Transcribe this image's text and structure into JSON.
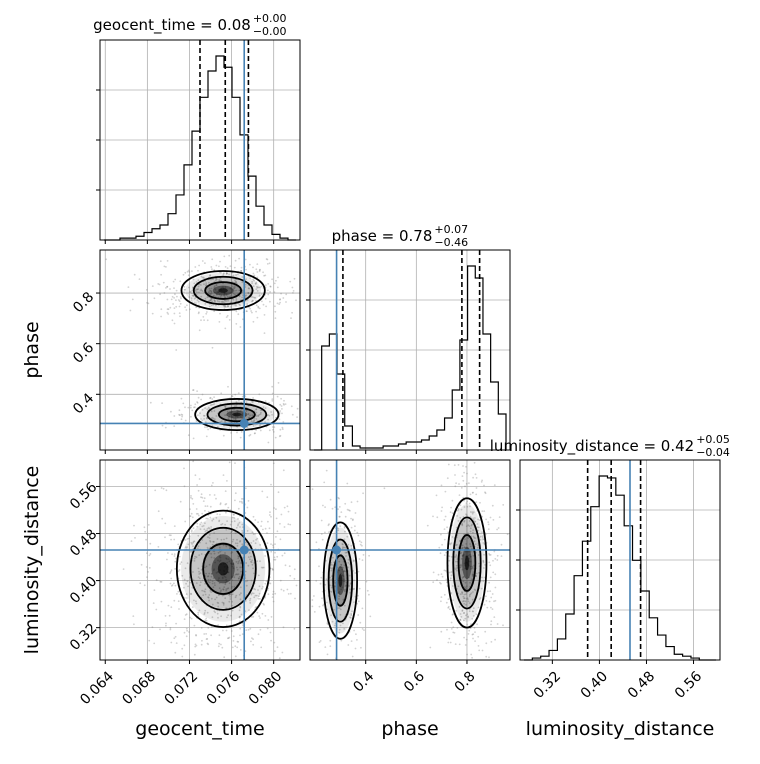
{
  "chart_data": {
    "type": "corner",
    "parameters": [
      "geocent_time",
      "phase",
      "luminosity_distance"
    ],
    "diagonal_titles": [
      {
        "name": "geocent_time",
        "value": "0.08",
        "plus": "+0.00",
        "minus": "−0.00"
      },
      {
        "name": "phase",
        "value": "0.78",
        "plus": "+0.07",
        "minus": "−0.46"
      },
      {
        "name": "luminosity_distance",
        "value": "0.42",
        "plus": "+0.05",
        "minus": "−0.04"
      }
    ],
    "axis_ranges": {
      "geocent_time": [
        0.0635,
        0.0825
      ],
      "phase": [
        0.18,
        0.97
      ],
      "luminosity_distance": [
        0.265,
        0.605
      ]
    },
    "ticks": {
      "geocent_time": [
        "0.064",
        "0.068",
        "0.072",
        "0.076",
        "0.080"
      ],
      "phase": [
        "0.4",
        "0.6",
        "0.8"
      ],
      "luminosity_distance": [
        "0.32",
        "0.40",
        "0.48",
        "0.56"
      ]
    },
    "truth": {
      "geocent_time": 0.0772,
      "phase": 0.285,
      "luminosity_distance": 0.452
    },
    "quantiles": {
      "geocent_time": [
        0.073,
        0.0754,
        0.0776
      ],
      "phase": [
        0.31,
        0.78,
        0.85
      ],
      "luminosity_distance": [
        0.38,
        0.42,
        0.47
      ]
    },
    "histograms": {
      "geocent_time": [
        0,
        0,
        1,
        1,
        2,
        4,
        6,
        8,
        14,
        24,
        40,
        58,
        76,
        90,
        98,
        92,
        76,
        56,
        34,
        18,
        8,
        3,
        1,
        0
      ],
      "phase": [
        0,
        52,
        58,
        38,
        12,
        2,
        1,
        1,
        1,
        2,
        2,
        3,
        4,
        4,
        5,
        7,
        10,
        16,
        30,
        55,
        92,
        86,
        58,
        34,
        18
      ],
      "luminosity_distance": [
        0,
        1,
        2,
        5,
        11,
        24,
        44,
        62,
        80,
        96,
        95,
        86,
        70,
        52,
        36,
        22,
        13,
        7,
        3,
        2,
        1,
        0,
        0
      ]
    },
    "grid": true,
    "colors": {
      "truth": "#4682b4",
      "hist": "#000000",
      "quantile": "#000000",
      "samples": "#7f7f7f"
    }
  }
}
